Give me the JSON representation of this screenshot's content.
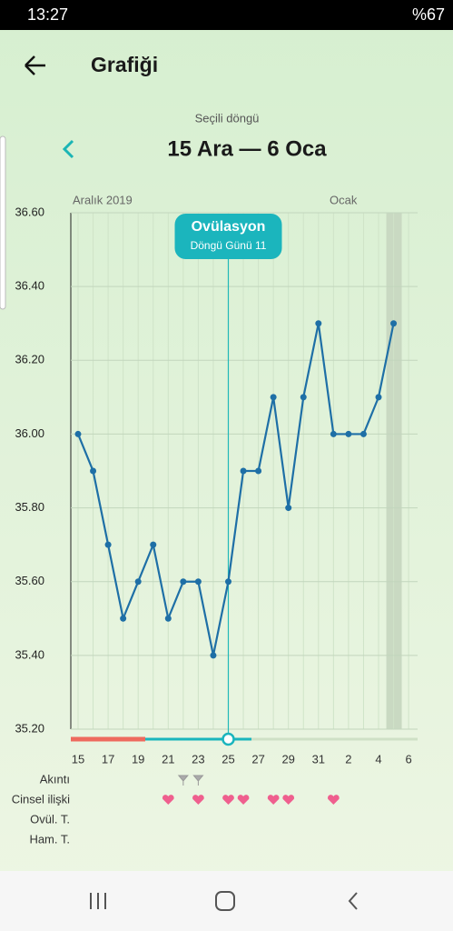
{
  "status_bar": {
    "time": "13:27",
    "battery": "%67"
  },
  "header": {
    "title": "Grafiği"
  },
  "cycle": {
    "caption": "Seçili döngü",
    "range": "15 Ara — 6 Oca"
  },
  "chart_data": {
    "type": "line",
    "months": [
      "Aralık 2019",
      "Ocak"
    ],
    "categories": [
      "15",
      null,
      "17",
      null,
      "19",
      null,
      "21",
      null,
      "23",
      null,
      "25",
      null,
      "27",
      null,
      "29",
      null,
      "31",
      null,
      "2",
      null,
      "4",
      null,
      "6"
    ],
    "values": [
      36.0,
      35.9,
      35.7,
      35.5,
      35.6,
      35.7,
      35.5,
      35.6,
      35.6,
      35.4,
      35.6,
      35.9,
      35.9,
      36.1,
      35.8,
      36.1,
      36.3,
      36.0,
      36.0,
      36.0,
      36.1,
      36.3,
      null
    ],
    "color": "#1e6fa6",
    "ylim": [
      35.2,
      36.6
    ],
    "yticks": [
      {
        "value": 35.2,
        "label": "35.20"
      },
      {
        "value": 35.4,
        "label": "35.40"
      },
      {
        "value": 35.6,
        "label": "35.60"
      },
      {
        "value": 35.8,
        "label": "35.80"
      },
      {
        "value": 36.0,
        "label": "36.00"
      },
      {
        "value": 36.2,
        "label": "36.20"
      },
      {
        "value": 36.4,
        "label": "36.40"
      },
      {
        "value": 36.6,
        "label": "36.60"
      }
    ],
    "grid": true,
    "annotation": {
      "title": "Ovülasyon",
      "subtitle": "Döngü Günü 11"
    },
    "rows": [
      "Akıntı",
      "Cinsel ilişki",
      "Ovül. T.",
      "Ham. T."
    ]
  }
}
